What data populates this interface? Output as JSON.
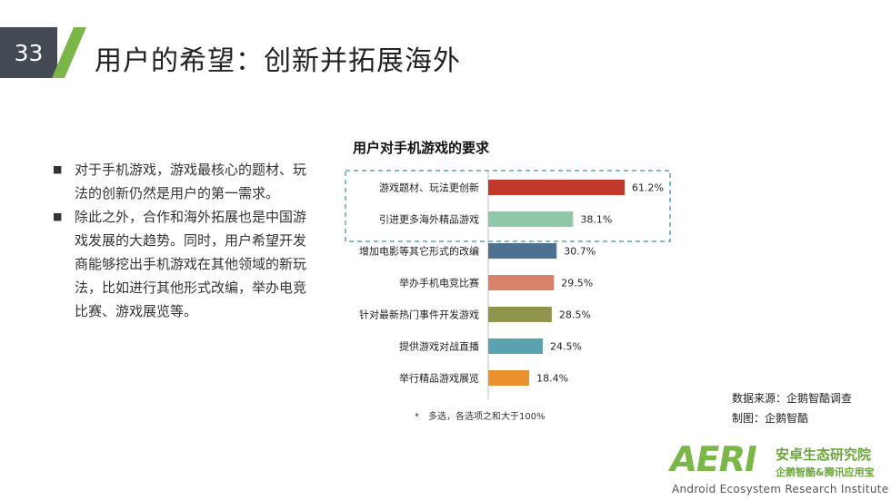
{
  "slide": {
    "number": "33",
    "title": "用户的希望：创新并拓展海外"
  },
  "bullets": [
    "对于手机游戏，游戏最核心的题材、玩法的创新仍然是用户的第一需求。",
    "除此之外，合作和海外拓展也是中国游戏发展的大趋势。同时，用户希望开发商能够挖出手机游戏在其他领域的新玩法，比如进行其他形式改编，举办电竞比赛、游戏展览等。"
  ],
  "chart_data": {
    "type": "bar",
    "orientation": "horizontal",
    "title": "用户对手机游戏的要求",
    "unit": "%",
    "categories": [
      "游戏题材、玩法更创新",
      "引进更多海外精品游戏",
      "增加电影等其它形式的改编",
      "举办手机电竞比赛",
      "针对最新热门事件开发游戏",
      "提供游戏对战直播",
      "举行精品游戏展览"
    ],
    "values": [
      61.2,
      38.1,
      30.7,
      29.5,
      28.5,
      24.5,
      18.4
    ],
    "value_labels": [
      "61.2%",
      "38.1%",
      "30.7%",
      "29.5%",
      "28.5%",
      "24.5%",
      "18.4%"
    ],
    "colors": [
      "#c0392b",
      "#8fc9a9",
      "#4f6f8f",
      "#d9826b",
      "#8f954c",
      "#5aa3ae",
      "#e8912e"
    ],
    "highlighted_categories": [
      "游戏题材、玩法更创新",
      "引进更多海外精品游戏"
    ],
    "note": "*　多选，各选项之和大于100%"
  },
  "source": {
    "data_source": "数据来源：企鹅智酷调查",
    "made_by": "制图：企鹅智酷"
  },
  "logo": {
    "mark": "AERI",
    "cn_name": "安卓生态研究院",
    "cn_sub": "企鹅智酷&腾讯应用宝",
    "en_name": "Android Ecosystem Research Institute"
  },
  "colors": {
    "accent_green": "#7ab648",
    "number_box": "#434a54"
  }
}
